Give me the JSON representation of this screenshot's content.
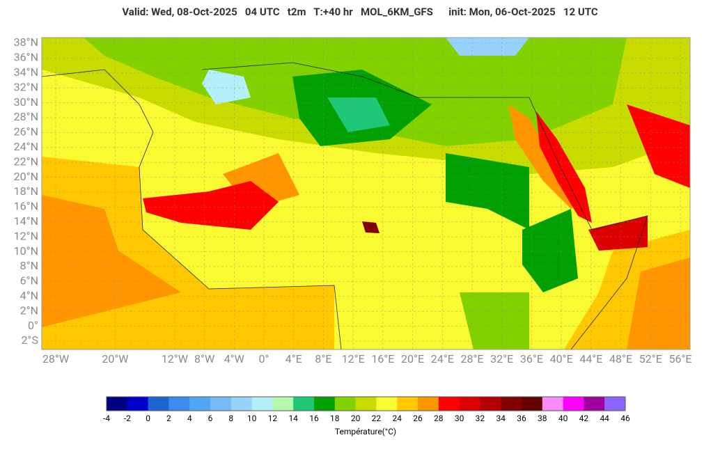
{
  "header": {
    "title": "Valid: Wed, 08-Oct-2025   04 UTC   t2m   T:+40 hr   MOL_6KM_GFS      init: Mon, 06-Oct-2025   12 UTC"
  },
  "map": {
    "lat_labels": [
      {
        "value": 38,
        "label": "38°N"
      },
      {
        "value": 36,
        "label": "36°N"
      },
      {
        "value": 34,
        "label": "34°N"
      },
      {
        "value": 32,
        "label": "32°N"
      },
      {
        "value": 30,
        "label": "30°N"
      },
      {
        "value": 28,
        "label": "28°N"
      },
      {
        "value": 26,
        "label": "26°N"
      },
      {
        "value": 24,
        "label": "24°N"
      },
      {
        "value": 22,
        "label": "22°N"
      },
      {
        "value": 20,
        "label": "20°N"
      },
      {
        "value": 18,
        "label": "18°N"
      },
      {
        "value": 16,
        "label": "16°N"
      },
      {
        "value": 14,
        "label": "14°N"
      },
      {
        "value": 12,
        "label": "12°N"
      },
      {
        "value": 10,
        "label": "10°N"
      },
      {
        "value": 8,
        "label": "8°N"
      },
      {
        "value": 6,
        "label": "6°N"
      },
      {
        "value": 4,
        "label": "4°N"
      },
      {
        "value": 2,
        "label": "2°N"
      },
      {
        "value": 0,
        "label": "0°"
      },
      {
        "value": -2,
        "label": "2°S"
      }
    ],
    "lon_labels": [
      {
        "value": -28,
        "label": "28°W"
      },
      {
        "value": -20,
        "label": "20°W"
      },
      {
        "value": -12,
        "label": "12°W"
      },
      {
        "value": -8,
        "label": "8°W"
      },
      {
        "value": -4,
        "label": "4°W"
      },
      {
        "value": 0,
        "label": "0°"
      },
      {
        "value": 4,
        "label": "4°E"
      },
      {
        "value": 8,
        "label": "8°E"
      },
      {
        "value": 12,
        "label": "12°E"
      },
      {
        "value": 16,
        "label": "16°E"
      },
      {
        "value": 20,
        "label": "20°E"
      },
      {
        "value": 24,
        "label": "24°E"
      },
      {
        "value": 28,
        "label": "28°E"
      },
      {
        "value": 32,
        "label": "32°E"
      },
      {
        "value": 36,
        "label": "36°E"
      },
      {
        "value": 40,
        "label": "40°E"
      },
      {
        "value": 44,
        "label": "44°E"
      },
      {
        "value": 48,
        "label": "48°E"
      },
      {
        "value": 52,
        "label": "52°E"
      },
      {
        "value": 56,
        "label": "56°E"
      }
    ]
  },
  "colorbar": {
    "title": "Température(°C)",
    "ticks": [
      -4,
      -2,
      0,
      2,
      4,
      6,
      8,
      10,
      12,
      14,
      16,
      18,
      20,
      22,
      24,
      26,
      28,
      30,
      32,
      34,
      36,
      38,
      40,
      42,
      44,
      46
    ],
    "colors": [
      "#000080",
      "#0000cd",
      "#1e64d2",
      "#3c8cf0",
      "#50a5f5",
      "#78b9fa",
      "#96d2fa",
      "#b4f0fa",
      "#b4faaa",
      "#1ec878",
      "#00a000",
      "#82d200",
      "#c8dc00",
      "#fafa32",
      "#ffc800",
      "#ff9600",
      "#ff0000",
      "#dc0000",
      "#b40000",
      "#820000",
      "#640000",
      "#fa8cfa",
      "#ff00ff",
      "#a000a0",
      "#8c64ff"
    ]
  }
}
